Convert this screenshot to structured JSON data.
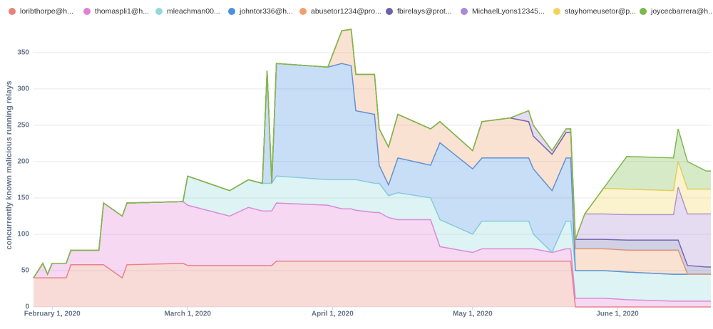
{
  "chart_data": {
    "type": "stacked_area",
    "y_label": "concurrently known malicious running relays",
    "x": [
      "2020-01-28",
      "2020-01-30",
      "2020-01-31",
      "2020-02-01",
      "2020-02-04",
      "2020-02-05",
      "2020-02-11",
      "2020-02-12",
      "2020-02-16",
      "2020-02-17",
      "2020-02-29",
      "2020-03-01",
      "2020-03-10",
      "2020-03-14",
      "2020-03-17",
      "2020-03-18",
      "2020-03-19",
      "2020-03-20",
      "2020-03-31",
      "2020-04-03",
      "2020-04-05",
      "2020-04-06",
      "2020-04-10",
      "2020-04-11",
      "2020-04-13",
      "2020-04-15",
      "2020-04-22",
      "2020-04-24",
      "2020-05-01",
      "2020-05-03",
      "2020-05-09",
      "2020-05-13",
      "2020-05-14",
      "2020-05-18",
      "2020-05-21",
      "2020-05-22",
      "2020-05-23",
      "2020-05-25",
      "2020-05-29",
      "2020-06-03",
      "2020-06-13",
      "2020-06-14",
      "2020-06-16",
      "2020-06-20",
      "2020-06-21"
    ],
    "xlim": [
      "2020-01-28",
      "2020-06-21"
    ],
    "xticks": [
      {
        "value": "2020-02-01",
        "label": "February 1, 2020"
      },
      {
        "value": "2020-03-01",
        "label": "March 1, 2020"
      },
      {
        "value": "2020-04-01",
        "label": "April 1, 2020"
      },
      {
        "value": "2020-05-01",
        "label": "May 1, 2020"
      },
      {
        "value": "2020-06-01",
        "label": "June 1, 2020"
      }
    ],
    "ylim": [
      0,
      390
    ],
    "yticks": [
      0,
      50,
      100,
      150,
      200,
      250,
      300,
      350
    ],
    "grid": true,
    "series": [
      {
        "name": "loribthorpe@h...",
        "color": "#e8837c",
        "values": [
          40,
          40,
          40,
          40,
          40,
          58,
          58,
          58,
          40,
          58,
          60,
          57,
          57,
          57,
          57,
          57,
          57,
          63,
          63,
          63,
          63,
          63,
          63,
          63,
          63,
          63,
          63,
          63,
          63,
          63,
          63,
          63,
          63,
          63,
          63,
          63,
          0,
          0,
          0,
          0,
          0,
          0,
          0,
          0,
          0
        ]
      },
      {
        "name": "thomaspli1@h...",
        "color": "#e47fd6",
        "values": [
          0,
          20,
          5,
          20,
          20,
          20,
          20,
          85,
          85,
          85,
          85,
          83,
          68,
          80,
          75,
          75,
          75,
          80,
          77,
          72,
          72,
          70,
          67,
          67,
          60,
          57,
          57,
          20,
          12,
          17,
          17,
          17,
          17,
          12,
          17,
          17,
          12,
          12,
          12,
          10,
          8,
          8,
          8,
          8,
          8
        ]
      },
      {
        "name": "mleachman00...",
        "color": "#93d8db",
        "values": [
          0,
          0,
          0,
          0,
          0,
          0,
          0,
          0,
          0,
          0,
          0,
          40,
          35,
          38,
          38,
          38,
          38,
          37,
          35,
          40,
          40,
          42,
          40,
          40,
          30,
          37,
          30,
          37,
          25,
          38,
          38,
          38,
          20,
          0,
          38,
          38,
          38,
          38,
          38,
          38,
          37,
          37,
          37,
          37,
          37
        ]
      },
      {
        "name": "johntor336@h...",
        "color": "#4a90e2",
        "values": [
          0,
          0,
          0,
          0,
          0,
          0,
          0,
          0,
          0,
          0,
          0,
          0,
          0,
          0,
          0,
          155,
          0,
          155,
          155,
          160,
          157,
          95,
          95,
          25,
          15,
          48,
          45,
          106,
          90,
          87,
          87,
          87,
          90,
          85,
          87,
          87,
          0,
          0,
          0,
          0,
          0,
          0,
          0,
          0,
          0
        ]
      },
      {
        "name": "abusetor1234@pro...",
        "color": "#f0a06e",
        "values": [
          0,
          0,
          0,
          0,
          0,
          0,
          0,
          0,
          0,
          0,
          0,
          0,
          0,
          0,
          0,
          0,
          0,
          0,
          0,
          45,
          50,
          50,
          55,
          50,
          52,
          60,
          50,
          29,
          25,
          50,
          55,
          50,
          45,
          50,
          35,
          35,
          30,
          30,
          30,
          30,
          33,
          33,
          0,
          0,
          0
        ]
      },
      {
        "name": "fbirelays@prot...",
        "color": "#6a63a8",
        "values": [
          0,
          0,
          0,
          0,
          0,
          0,
          0,
          0,
          0,
          0,
          0,
          0,
          0,
          0,
          0,
          0,
          0,
          0,
          0,
          0,
          0,
          0,
          0,
          0,
          0,
          0,
          0,
          0,
          0,
          0,
          0,
          0,
          0,
          0,
          0,
          0,
          13,
          13,
          13,
          14,
          14,
          14,
          12,
          10,
          10
        ]
      },
      {
        "name": "MichaelLyons12345...",
        "color": "#a98bd4",
        "values": [
          0,
          0,
          0,
          0,
          0,
          0,
          0,
          0,
          0,
          0,
          0,
          0,
          0,
          0,
          0,
          0,
          0,
          0,
          0,
          0,
          0,
          0,
          0,
          0,
          0,
          0,
          0,
          0,
          0,
          0,
          0,
          15,
          15,
          5,
          5,
          5,
          0,
          35,
          35,
          35,
          35,
          73,
          71,
          73,
          73
        ]
      },
      {
        "name": "stayhomeusetor@p...",
        "color": "#f2d45c",
        "values": [
          0,
          0,
          0,
          0,
          0,
          0,
          0,
          0,
          0,
          0,
          0,
          0,
          0,
          0,
          0,
          0,
          0,
          0,
          0,
          0,
          0,
          0,
          0,
          0,
          0,
          0,
          0,
          0,
          0,
          0,
          0,
          0,
          0,
          0,
          0,
          0,
          0,
          0,
          35,
          35,
          33,
          35,
          34,
          34,
          34
        ]
      },
      {
        "name": "joycecbarrera@h...",
        "color": "#7cb84a",
        "values": [
          0,
          0,
          0,
          0,
          0,
          0,
          0,
          0,
          0,
          0,
          0,
          0,
          0,
          0,
          0,
          0,
          0,
          0,
          0,
          0,
          0,
          0,
          0,
          0,
          0,
          0,
          0,
          0,
          0,
          0,
          0,
          0,
          0,
          0,
          0,
          0,
          0,
          0,
          0,
          45,
          45,
          45,
          38,
          25,
          25
        ]
      }
    ]
  }
}
